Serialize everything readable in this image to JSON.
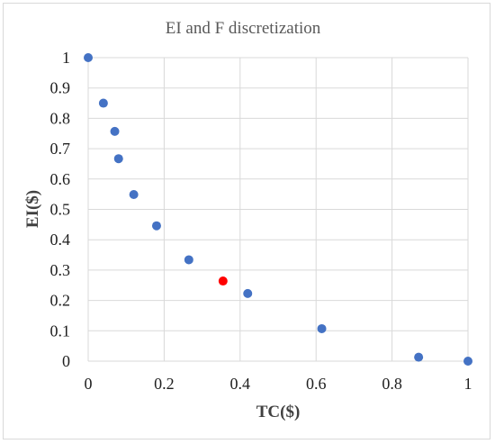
{
  "chart_data": {
    "type": "scatter",
    "title": "EI and F discretization",
    "xlabel": "TC($)",
    "ylabel": "EI($)",
    "xlim": [
      0,
      1
    ],
    "ylim": [
      0,
      1
    ],
    "xticks": [
      "0",
      "0.2",
      "0.4",
      "0.6",
      "0.8",
      "1"
    ],
    "yticks": [
      "0",
      "0.1",
      "0.2",
      "0.3",
      "0.4",
      "0.5",
      "0.6",
      "0.7",
      "0.8",
      "0.9",
      "1"
    ],
    "grid": true,
    "series": [
      {
        "color": "#4472c4",
        "points": [
          {
            "x": 0.0,
            "y": 1.0
          },
          {
            "x": 0.04,
            "y": 0.85
          },
          {
            "x": 0.07,
            "y": 0.757
          },
          {
            "x": 0.08,
            "y": 0.667
          },
          {
            "x": 0.12,
            "y": 0.549
          },
          {
            "x": 0.18,
            "y": 0.446
          },
          {
            "x": 0.265,
            "y": 0.334
          },
          {
            "x": 0.42,
            "y": 0.223
          },
          {
            "x": 0.615,
            "y": 0.107
          },
          {
            "x": 0.87,
            "y": 0.013
          },
          {
            "x": 1.0,
            "y": 0.0
          }
        ]
      },
      {
        "color": "#ff0000",
        "points": [
          {
            "x": 0.355,
            "y": 0.264
          }
        ]
      }
    ]
  }
}
